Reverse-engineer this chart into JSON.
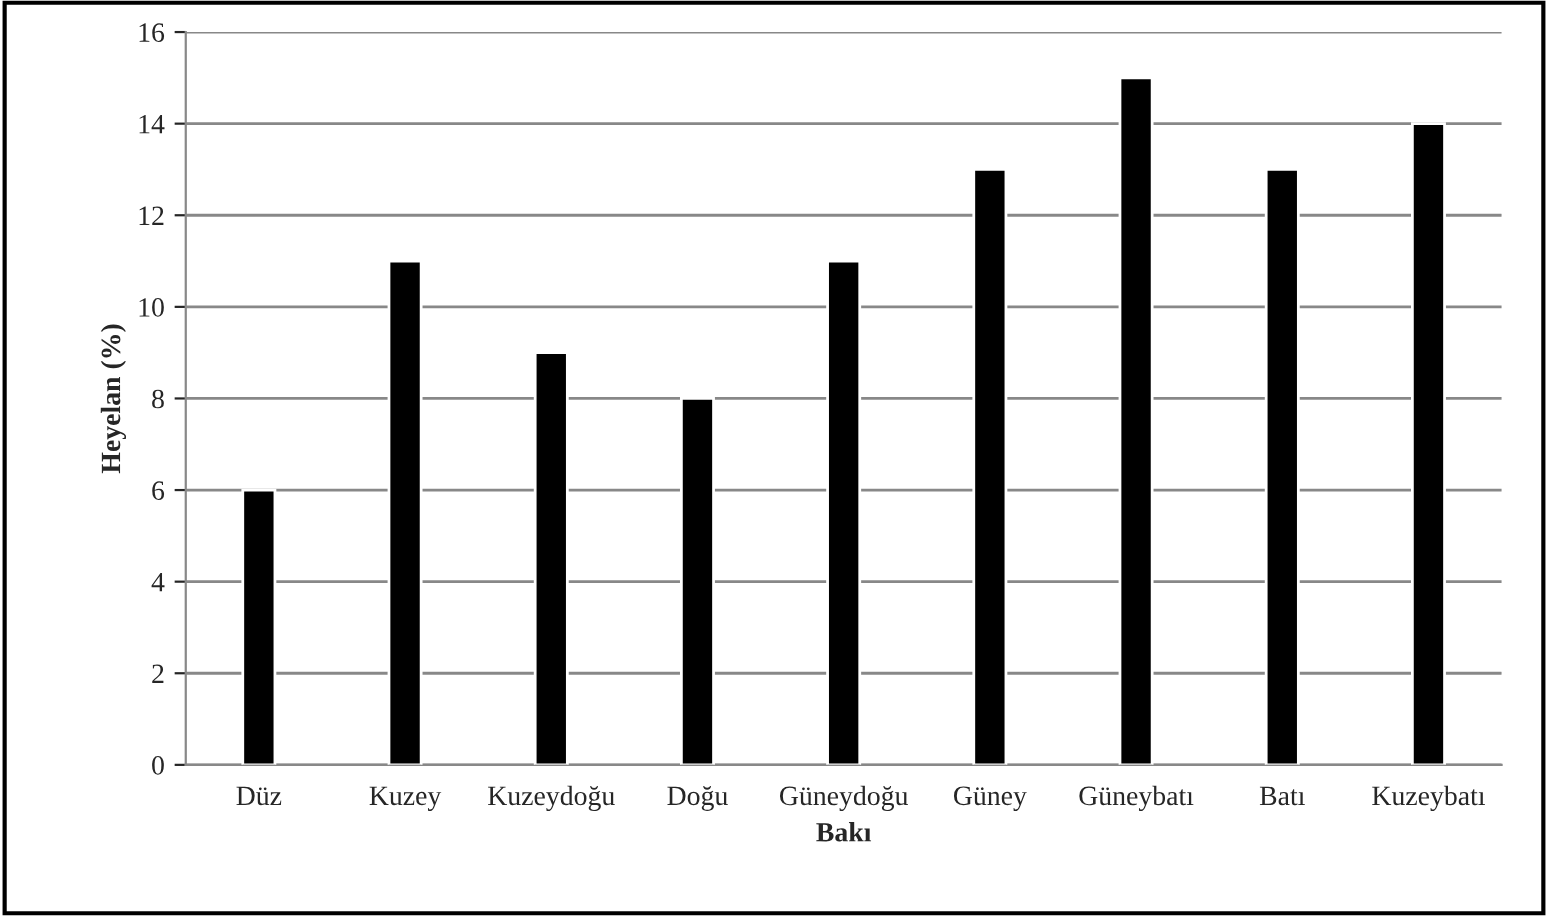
{
  "chart_data": {
    "type": "bar",
    "xlabel": "Bakı",
    "ylabel": "Heyelan (%)",
    "categories": [
      "Düz",
      "Kuzey",
      "Kuzeydoğu",
      "Doğu",
      "Güneydoğu",
      "Güney",
      "Güneybatı",
      "Batı",
      "Kuzeybatı"
    ],
    "values": [
      6,
      11,
      9,
      8,
      11,
      13,
      15,
      13,
      14
    ],
    "color": "#000000",
    "ylim": [
      0,
      16
    ],
    "yticks": [
      0,
      2,
      4,
      6,
      8,
      10,
      12,
      14,
      16
    ],
    "grid": "y",
    "legend": false
  }
}
